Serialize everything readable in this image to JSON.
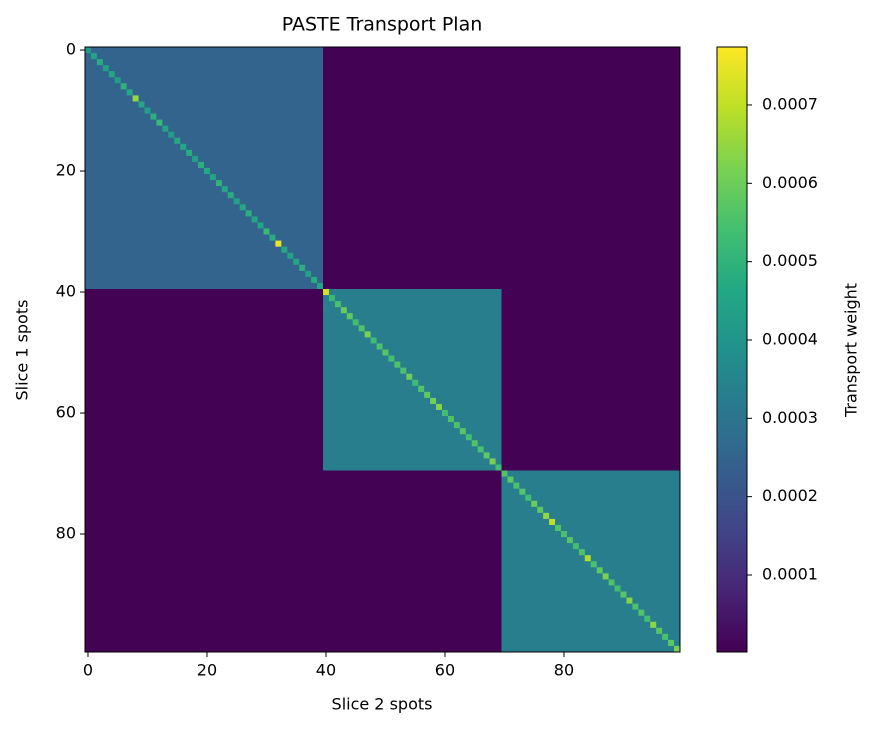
{
  "chart_data": {
    "type": "heatmap",
    "title": "PASTE Transport Plan",
    "x_label": "Slice 2 spots",
    "y_label": "Slice 1 spots",
    "colorbar_label": "Transport weight",
    "xlim": [
      -0.5,
      99.5
    ],
    "ylim": [
      99.5,
      -0.5
    ],
    "xticks": [
      0,
      20,
      40,
      60,
      80
    ],
    "yticks": [
      0,
      20,
      40,
      60,
      80
    ],
    "clim": [
      1.7e-06,
      0.000774
    ],
    "cticks": [
      0.0001,
      0.0002,
      0.0003,
      0.0004,
      0.0005,
      0.0006,
      0.0007
    ],
    "colormap": "viridis",
    "background": 3e-06,
    "blocks": [
      {
        "rows": [
          0,
          39
        ],
        "cols": [
          0,
          39
        ],
        "value": 0.00025
      },
      {
        "rows": [
          40,
          69
        ],
        "cols": [
          40,
          69
        ],
        "value": 0.00033
      },
      {
        "rows": [
          70,
          99
        ],
        "cols": [
          70,
          99
        ],
        "value": 0.00033
      }
    ],
    "diagonal": [
      0.00042,
      0.00045,
      0.00048,
      0.00044,
      0.00046,
      0.00043,
      0.0005,
      0.00047,
      0.00065,
      0.00046,
      0.00044,
      0.00049,
      0.00052,
      0.00045,
      0.00043,
      0.00047,
      0.00046,
      0.00048,
      0.00044,
      0.00049,
      0.00047,
      0.00045,
      0.0005,
      0.00046,
      0.00048,
      0.00044,
      0.00047,
      0.00049,
      0.00046,
      0.00045,
      0.00052,
      0.00048,
      0.00075,
      0.00047,
      0.00045,
      0.00046,
      0.00049,
      0.00044,
      0.00048,
      0.00046,
      0.00072,
      0.00052,
      0.00055,
      0.0006,
      0.00058,
      0.00054,
      0.00056,
      0.00062,
      0.00053,
      0.00055,
      0.00057,
      0.00054,
      0.00056,
      0.00055,
      0.0006,
      0.00053,
      0.00056,
      0.00058,
      0.00061,
      0.00063,
      0.00054,
      0.00056,
      0.00055,
      0.00057,
      0.00054,
      0.00056,
      0.00055,
      0.00058,
      0.00062,
      0.00054,
      0.00056,
      0.00058,
      0.00055,
      0.00057,
      0.00054,
      0.0006,
      0.00058,
      0.00065,
      0.0007,
      0.00056,
      0.00055,
      0.00057,
      0.00054,
      0.00056,
      0.00068,
      0.00055,
      0.00058,
      0.00062,
      0.00056,
      0.00054,
      0.00057,
      0.00063,
      0.00055,
      0.00056,
      0.00054,
      0.00064,
      0.00057,
      0.00055,
      0.00058,
      0.00062
    ]
  }
}
